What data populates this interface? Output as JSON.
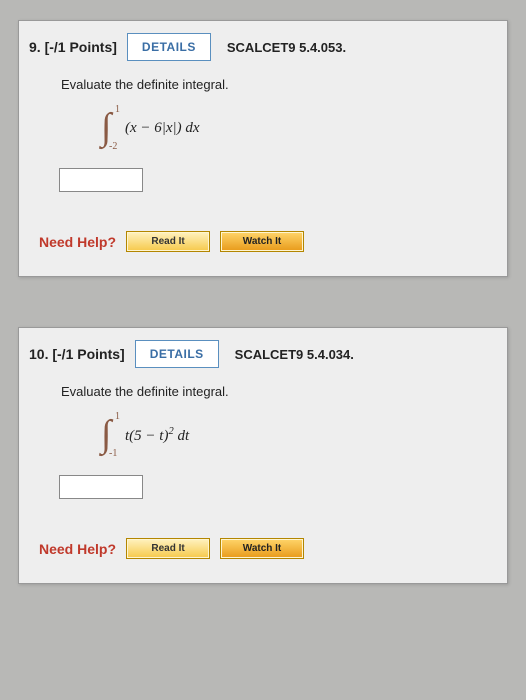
{
  "colors": {
    "page_bg": "#b8b8b6",
    "panel_bg": "#eeeeee",
    "details_border": "#5a8fbf",
    "details_text": "#3a6ea5",
    "help_text": "#c0392b",
    "integral_color": "#8a5a44",
    "help_btn_grad_top": "#fff2c0",
    "help_btn_grad_bot": "#f6c94a",
    "watch_btn_grad_top": "#ffd56a",
    "watch_btn_grad_bot": "#e89a1a"
  },
  "questions": [
    {
      "number": "9.",
      "points": "[-/1 Points]",
      "details_label": "DETAILS",
      "reference": "SCALCET9 5.4.053.",
      "prompt": "Evaluate the definite integral.",
      "integral": {
        "upper": "1",
        "lower": "-2",
        "expr": "(x − 6|x|) dx"
      },
      "help_label": "Need Help?",
      "read_label": "Read It",
      "watch_label": "Watch It"
    },
    {
      "number": "10.",
      "points": "[-/1 Points]",
      "details_label": "DETAILS",
      "reference": "SCALCET9 5.4.034.",
      "prompt": "Evaluate the definite integral.",
      "integral": {
        "upper": "1",
        "lower": "-1",
        "expr_html": "t(5 − t)<sup>2</sup> dt"
      },
      "help_label": "Need Help?",
      "read_label": "Read It",
      "watch_label": "Watch It"
    }
  ]
}
